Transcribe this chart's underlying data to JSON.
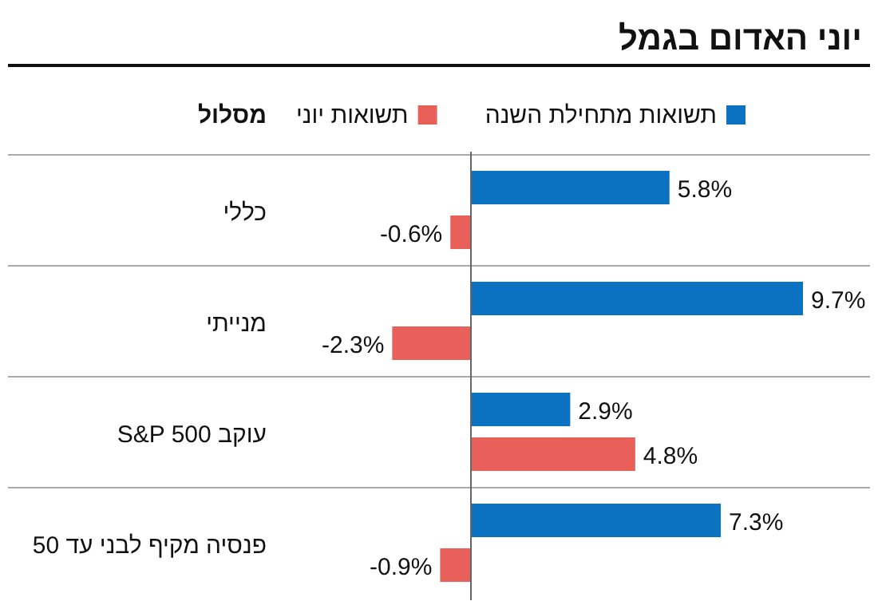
{
  "chart_data": {
    "type": "bar",
    "orientation": "horizontal",
    "title": "יוני האדום בגמל",
    "ylabel": "מסלול",
    "categories": [
      "כללי",
      "מנייתי",
      "עוקב S&P 500",
      "פנסיה מקיף לבני עד 50"
    ],
    "series": [
      {
        "name": "תשואות מתחילת השנה",
        "color": "#0b72c2",
        "values": [
          5.8,
          9.7,
          2.9,
          7.3
        ],
        "value_labels": [
          "5.8%",
          "9.7%",
          "2.9%",
          "7.3%"
        ]
      },
      {
        "name": "תשואות יוני",
        "color": "#e9605a",
        "values": [
          -0.6,
          -2.3,
          4.8,
          -0.9
        ],
        "value_labels": [
          "-0.6%",
          "-2.3%",
          "4.8%",
          "-0.9%"
        ]
      }
    ],
    "legend": "top"
  }
}
